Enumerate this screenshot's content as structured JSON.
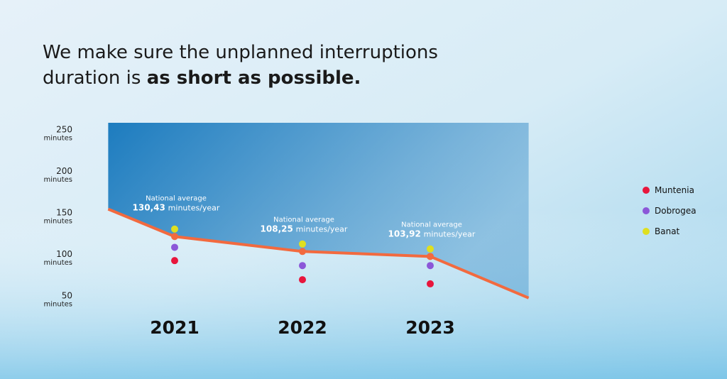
{
  "chart_data": {
    "type": "line",
    "title": {
      "line1": "We make sure the unplanned interruptions",
      "line2": "duration is ",
      "line2_bold": "as short as possible."
    },
    "categories": [
      "2021",
      "2022",
      "2023"
    ],
    "ylim": [
      40,
      258
    ],
    "yticks": [
      50,
      100,
      150,
      200,
      250
    ],
    "y_unit": "minutes",
    "area_color": "#1d7cbf",
    "line": {
      "color": "#f26a3f",
      "x": [
        -0.52,
        0,
        1,
        2,
        2.77
      ],
      "values": [
        154,
        121,
        103,
        97,
        47
      ]
    },
    "series": [
      {
        "name": "Muntenia",
        "color": "#e8163c",
        "values": [
          92,
          69,
          64
        ]
      },
      {
        "name": "Dobrogea",
        "color": "#8b57d8",
        "values": [
          108,
          86,
          86
        ]
      },
      {
        "name": "Banat",
        "color": "#dfdf1f",
        "values": [
          130,
          112,
          106
        ]
      }
    ],
    "annotations": [
      {
        "label": "National average",
        "value": "130,43",
        "unit": "minutes/year"
      },
      {
        "label": "National average",
        "value": "108,25",
        "unit": "minutes/year"
      },
      {
        "label": "National average",
        "value": "103,92",
        "unit": "minutes/year"
      }
    ]
  }
}
